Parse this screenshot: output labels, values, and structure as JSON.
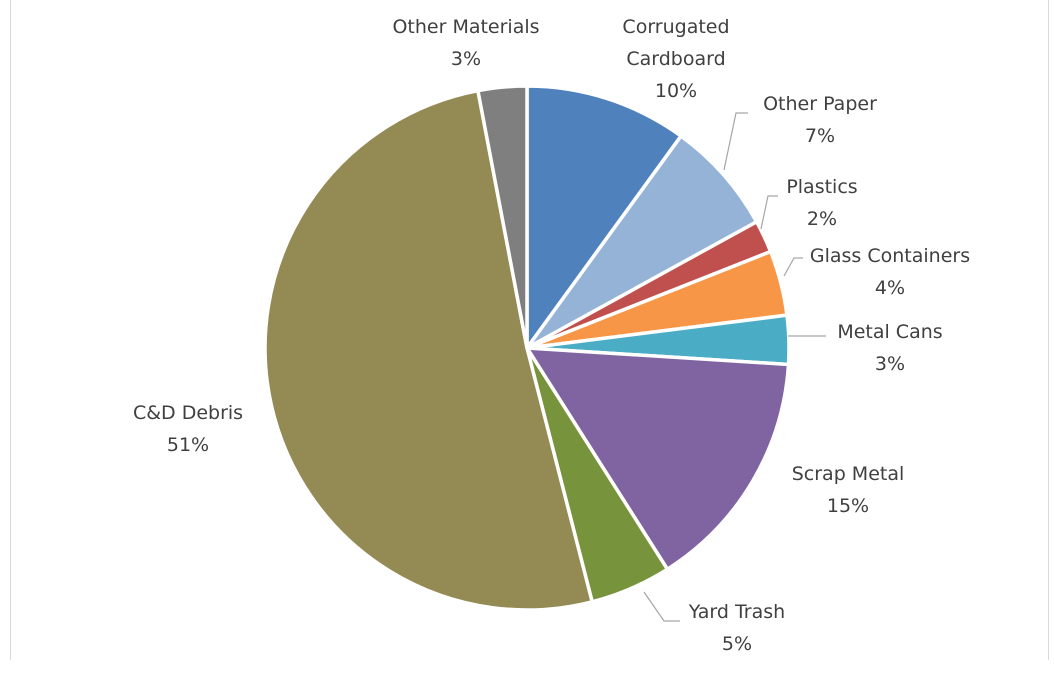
{
  "chart_data": {
    "type": "pie",
    "categories": [
      "Corrugated Cardboard",
      "Other Paper",
      "Plastics",
      "Glass Containers",
      "Metal Cans",
      "Scrap Metal",
      "Yard Trash",
      "C&D Debris",
      "Other Materials"
    ],
    "values": [
      10,
      7,
      2,
      4,
      3,
      15,
      5,
      51,
      3
    ],
    "value_labels": [
      "10%",
      "7%",
      "2%",
      "4%",
      "3%",
      "15%",
      "5%",
      "51%",
      "3%"
    ],
    "label_lines": [
      [
        "Corrugated",
        "Cardboard"
      ],
      [
        "Other Paper"
      ],
      [
        "Plastics"
      ],
      [
        "Glass Containers"
      ],
      [
        "Metal Cans"
      ],
      [
        "Scrap Metal"
      ],
      [
        "Yard Trash"
      ],
      [
        "C&D Debris"
      ],
      [
        "Other Materials"
      ]
    ],
    "colors": [
      "#4f81bd",
      "#95b3d7",
      "#c0504d",
      "#f79646",
      "#4bacc6",
      "#8064a2",
      "#77933c",
      "#948a54",
      "#7f7f7f"
    ],
    "start": "12 o'clock",
    "direction": "clockwise",
    "legend": "none",
    "title": ""
  }
}
